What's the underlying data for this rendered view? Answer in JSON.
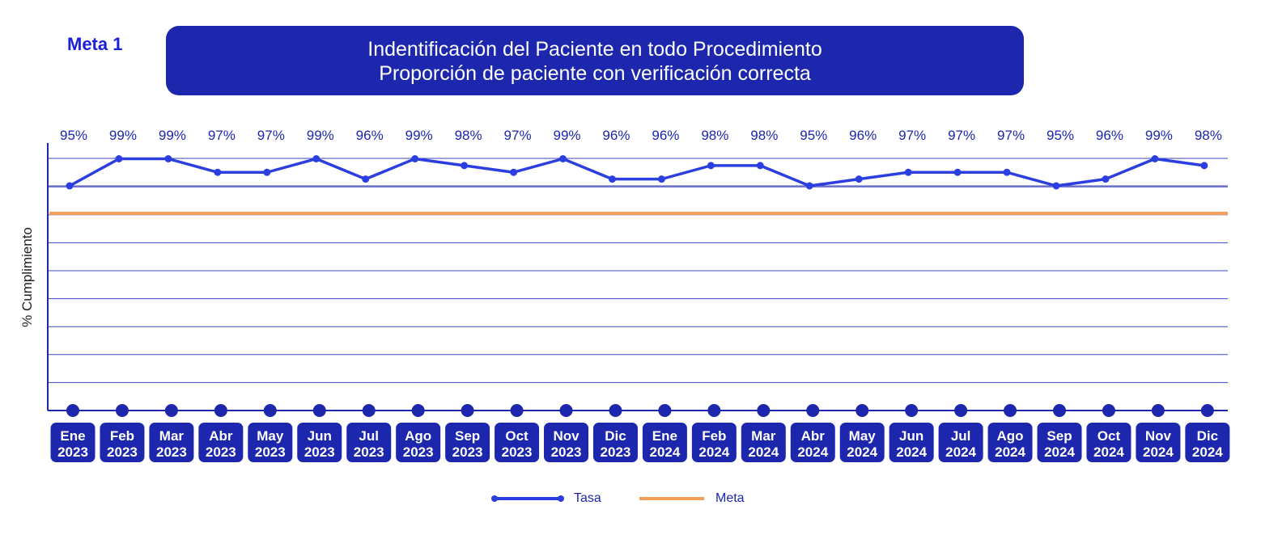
{
  "header": {
    "meta_label": "Meta 1",
    "title": "Indentificación del Paciente en todo Procedimiento",
    "subtitle": "Proporción de paciente con verificación correcta"
  },
  "chart_data": {
    "type": "line",
    "ylabel": "% Cumplimiento",
    "xlabel": "",
    "ylim": [
      0,
      100
    ],
    "grid": true,
    "legend_position": "bottom-center",
    "categories": [
      {
        "month": "Ene",
        "year": "2023"
      },
      {
        "month": "Feb",
        "year": "2023"
      },
      {
        "month": "Mar",
        "year": "2023"
      },
      {
        "month": "Abr",
        "year": "2023"
      },
      {
        "month": "May",
        "year": "2023"
      },
      {
        "month": "Jun",
        "year": "2023"
      },
      {
        "month": "Jul",
        "year": "2023"
      },
      {
        "month": "Ago",
        "year": "2023"
      },
      {
        "month": "Sep",
        "year": "2023"
      },
      {
        "month": "Oct",
        "year": "2023"
      },
      {
        "month": "Nov",
        "year": "2023"
      },
      {
        "month": "Dic",
        "year": "2023"
      },
      {
        "month": "Ene",
        "year": "2024"
      },
      {
        "month": "Feb",
        "year": "2024"
      },
      {
        "month": "Mar",
        "year": "2024"
      },
      {
        "month": "Abr",
        "year": "2024"
      },
      {
        "month": "May",
        "year": "2024"
      },
      {
        "month": "Jun",
        "year": "2024"
      },
      {
        "month": "Jul",
        "year": "2024"
      },
      {
        "month": "Ago",
        "year": "2024"
      },
      {
        "month": "Sep",
        "year": "2024"
      },
      {
        "month": "Oct",
        "year": "2024"
      },
      {
        "month": "Nov",
        "year": "2024"
      },
      {
        "month": "Dic",
        "year": "2024"
      }
    ],
    "series": [
      {
        "name": "Tasa",
        "color": "#2b3ee0",
        "values": [
          95,
          99,
          99,
          97,
          97,
          99,
          96,
          99,
          98,
          97,
          99,
          96,
          96,
          98,
          98,
          95,
          96,
          97,
          97,
          97,
          95,
          96,
          99,
          98
        ],
        "labels": [
          "95%",
          "99%",
          "99%",
          "97%",
          "97%",
          "99%",
          "96%",
          "99%",
          "98%",
          "97%",
          "99%",
          "96%",
          "96%",
          "98%",
          "98%",
          "95%",
          "96%",
          "97%",
          "97%",
          "97%",
          "95%",
          "96%",
          "99%",
          "98%"
        ]
      },
      {
        "name": "Meta",
        "color": "#f5a05a",
        "value": 90
      }
    ]
  },
  "colors": {
    "primary": "#1c27ad",
    "line": "#2b3ee0",
    "meta": "#f5a05a",
    "grid": "#1c27ad"
  }
}
